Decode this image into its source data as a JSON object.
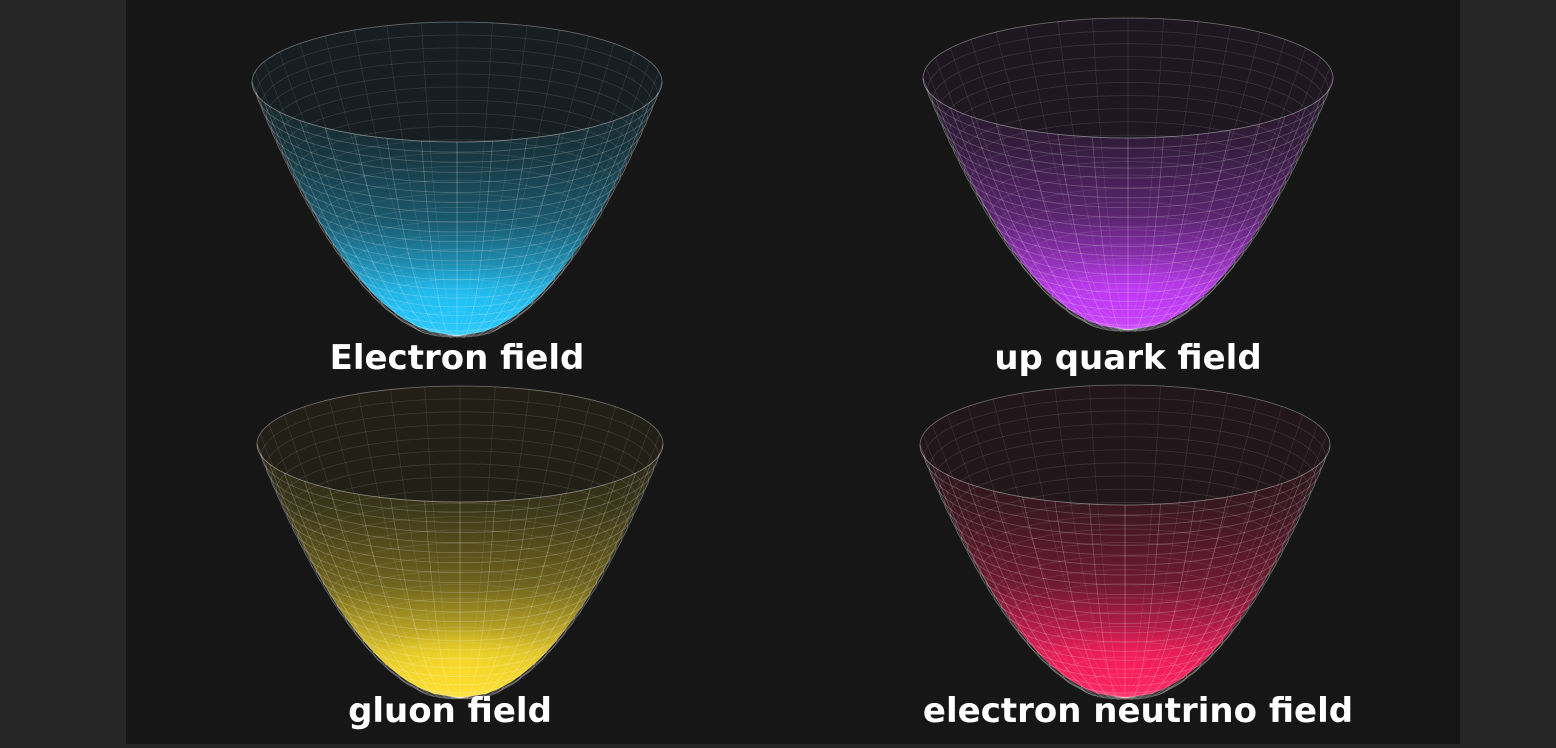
{
  "fields": [
    {
      "label": "Electron field",
      "color": "#22c8ff",
      "icon": "paraboloid-bowl-icon"
    },
    {
      "label": "up quark field",
      "color": "#c83cff",
      "icon": "paraboloid-bowl-icon"
    },
    {
      "label": "gluon field",
      "color": "#ffe02a",
      "icon": "paraboloid-bowl-icon"
    },
    {
      "label": "electron neutrino field",
      "color": "#ff1f5e",
      "icon": "paraboloid-bowl-icon"
    }
  ]
}
